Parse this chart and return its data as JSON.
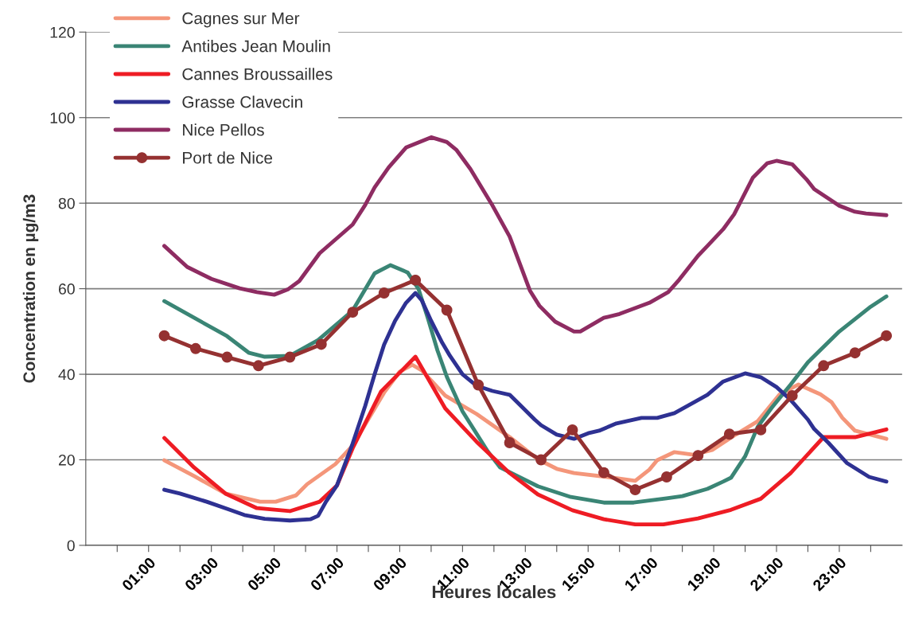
{
  "chart_data": {
    "type": "line",
    "xlabel": "Heures locales",
    "ylabel": "Concentration en µg/m3",
    "xlim": [
      -1,
      25
    ],
    "ylim": [
      0,
      120
    ],
    "yticks": [
      0,
      20,
      40,
      60,
      80,
      100,
      120
    ],
    "xticks": [
      {
        "value": 0,
        "label": null
      },
      {
        "value": 1,
        "label": "01:00"
      },
      {
        "value": 2,
        "label": null
      },
      {
        "value": 3,
        "label": "03:00"
      },
      {
        "value": 4,
        "label": null
      },
      {
        "value": 5,
        "label": "05:00"
      },
      {
        "value": 6,
        "label": null
      },
      {
        "value": 7,
        "label": "07:00"
      },
      {
        "value": 8,
        "label": null
      },
      {
        "value": 9,
        "label": "09:00"
      },
      {
        "value": 10,
        "label": null
      },
      {
        "value": 11,
        "label": "11:00"
      },
      {
        "value": 12,
        "label": null
      },
      {
        "value": 13,
        "label": "13:00"
      },
      {
        "value": 14,
        "label": null
      },
      {
        "value": 15,
        "label": "15:00"
      },
      {
        "value": 16,
        "label": null
      },
      {
        "value": 17,
        "label": "17:00"
      },
      {
        "value": 18,
        "label": null
      },
      {
        "value": 19,
        "label": "19:00"
      },
      {
        "value": 20,
        "label": null
      },
      {
        "value": 21,
        "label": "21:00"
      },
      {
        "value": 22,
        "label": null
      },
      {
        "value": 23,
        "label": "23:00"
      },
      {
        "value": 24,
        "label": null
      }
    ],
    "grid": "y",
    "legend": "top left",
    "line_style": "solid",
    "series": [
      {
        "name": "Cagnes sur Mer",
        "color": "#f4967a",
        "marker": "none",
        "x": [
          1.5,
          2.45,
          3.45,
          4.55,
          5.05,
          5.7,
          6.05,
          6.95,
          7.5,
          8.5,
          9,
          9.4,
          9.7,
          10.45,
          11.45,
          12.5,
          13.4,
          14,
          14.55,
          15.6,
          16.5,
          16.95,
          17.2,
          17.75,
          18.35,
          18.95,
          19.7,
          20.4,
          21.1,
          21.7,
          22.4,
          22.75,
          23.1,
          23.5,
          24.5
        ],
        "values": [
          19.9,
          16.2,
          12.1,
          10.2,
          10.2,
          11.7,
          14.3,
          19,
          23.3,
          35.7,
          40.6,
          42.2,
          40.9,
          35,
          30.7,
          25.3,
          20.1,
          17.9,
          16.9,
          16,
          15.1,
          17.7,
          19.9,
          21.8,
          21.2,
          22.3,
          25.9,
          29,
          35.3,
          37.6,
          35.3,
          33.5,
          29.8,
          26.8,
          24.9
        ]
      },
      {
        "name": "Antibes Jean Moulin",
        "color": "#3a8575",
        "marker": "none",
        "x": [
          1.5,
          3.5,
          4.2,
          4.7,
          5.5,
          6.4,
          7.5,
          8.2,
          8.7,
          9.25,
          9.6,
          9.9,
          10.2,
          10.5,
          11,
          11.8,
          12.2,
          13.4,
          14.45,
          15.5,
          16.45,
          17.5,
          18,
          18.8,
          19.3,
          19.55,
          20,
          20.4,
          20.85,
          21.45,
          22,
          23,
          24,
          24.5
        ],
        "values": [
          57.1,
          48.9,
          45,
          44.1,
          44.3,
          48,
          54.9,
          63.6,
          65.5,
          63.8,
          59.9,
          53,
          45.6,
          39.4,
          31.3,
          22,
          18.2,
          13.8,
          11.3,
          10,
          10,
          11,
          11.5,
          13.2,
          14.9,
          15.8,
          20.8,
          27.7,
          32.2,
          37.6,
          42.8,
          50,
          55.8,
          58.2
        ]
      },
      {
        "name": "Cannes Broussailles",
        "color": "#ee1c24",
        "marker": "none",
        "x": [
          1.5,
          2.45,
          3.45,
          4.45,
          5.5,
          6.45,
          7,
          7.5,
          8.4,
          9.5,
          10.45,
          11.45,
          12.5,
          13.4,
          14.5,
          15.5,
          16.5,
          17.4,
          18.5,
          19.55,
          20.5,
          21.45,
          22.5,
          23.5,
          24.5
        ],
        "values": [
          25.1,
          18.2,
          12.1,
          8.7,
          8,
          10.2,
          14,
          22.7,
          35.9,
          44.1,
          32,
          24.2,
          16.9,
          11.9,
          8.2,
          6.1,
          4.9,
          4.9,
          6.3,
          8.3,
          10.9,
          16.9,
          25.3,
          25.3,
          27.1
        ]
      },
      {
        "name": "Grasse Clavecin",
        "color": "#2e3192",
        "marker": "none",
        "x": [
          1.5,
          2,
          2.85,
          3.55,
          4.05,
          4.7,
          5.5,
          6.15,
          6.4,
          6.65,
          7,
          7.5,
          7.9,
          8.2,
          8.5,
          8.85,
          9.2,
          9.5,
          9.7,
          10,
          10.35,
          10.6,
          11,
          11.45,
          11.95,
          12.5,
          13,
          13.3,
          13.5,
          14,
          14.55,
          15,
          15.35,
          15.9,
          16.7,
          17.2,
          17.75,
          18.8,
          19.3,
          20,
          20.5,
          21,
          21.45,
          22,
          22.2,
          22.65,
          23.25,
          23.95,
          24.5
        ],
        "values": [
          13,
          12.1,
          10.2,
          8.4,
          7.1,
          6.2,
          5.8,
          6.1,
          6.9,
          10.2,
          14,
          23.8,
          32.6,
          40,
          46.9,
          52.5,
          56.7,
          59,
          57.3,
          52.5,
          47.4,
          44.3,
          40,
          37.3,
          36.1,
          35.2,
          31.6,
          29.4,
          28.1,
          25.9,
          24.9,
          26.2,
          26.8,
          28.5,
          29.8,
          29.8,
          30.9,
          35.2,
          38.3,
          40.2,
          39.3,
          37,
          34,
          29.4,
          27.2,
          24,
          19.2,
          16,
          14.9
        ]
      },
      {
        "name": "Nice Pellos",
        "color": "#8e2c62",
        "marker": "none",
        "x": [
          1.5,
          2.23,
          3,
          3.9,
          4.45,
          5,
          5.45,
          5.8,
          6.45,
          7.5,
          7.9,
          8.2,
          8.65,
          9.2,
          10,
          10.5,
          10.8,
          11.25,
          11.95,
          12.5,
          13.15,
          13.45,
          13.95,
          14.55,
          14.75,
          15.5,
          16,
          16.95,
          17.55,
          17.9,
          18.5,
          18.8,
          19.3,
          19.65,
          20.25,
          20.7,
          21,
          21.5,
          21.95,
          22.2,
          23,
          23.5,
          23.85,
          24.5
        ],
        "values": [
          70,
          65.1,
          62.3,
          60.1,
          59.2,
          58.6,
          59.9,
          61.8,
          68.3,
          75,
          79.6,
          83.7,
          88.4,
          93,
          95.4,
          94.3,
          92.5,
          88,
          79.5,
          72.2,
          59.5,
          56,
          52.3,
          50,
          50,
          53.2,
          54.1,
          56.7,
          59.2,
          62.1,
          67.7,
          70,
          73.9,
          77.4,
          86,
          89.3,
          89.9,
          89.1,
          85.6,
          83.3,
          79.4,
          78,
          77.6,
          77.2
        ]
      },
      {
        "name": "Port de Nice",
        "color": "#953131",
        "marker": "circle",
        "x": [
          1.5,
          2.5,
          3.5,
          4.5,
          5.5,
          6.5,
          7.5,
          8.5,
          9.5,
          10.5,
          11.5,
          12.5,
          13.5,
          14.5,
          15.5,
          16.5,
          17.5,
          18.5,
          19.5,
          20.5,
          21.5,
          22.5,
          23.5,
          24.5
        ],
        "values": [
          49,
          46,
          44,
          42,
          44,
          47,
          54.5,
          59,
          62,
          55,
          37.5,
          24,
          20,
          27,
          17,
          13,
          16,
          21,
          26,
          27,
          35,
          42,
          45,
          49
        ]
      }
    ]
  }
}
